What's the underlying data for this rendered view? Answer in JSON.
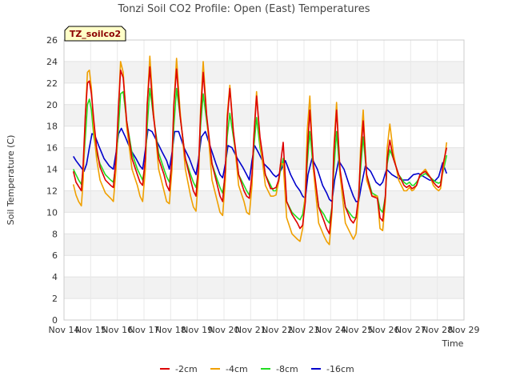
{
  "chart_data": {
    "type": "line",
    "title": "Tonzi Soil CO2 Profile: Open (East) Temperatures",
    "badge": "TZ_soilco2",
    "xlabel": "Time",
    "ylabel": "Soil Temperature (C)",
    "ylim": [
      0,
      26
    ],
    "yticks": [
      0,
      2,
      4,
      6,
      8,
      10,
      12,
      14,
      16,
      18,
      20,
      22,
      24,
      26
    ],
    "xlim": [
      14,
      29
    ],
    "xtick_values": [
      14,
      15,
      16,
      17,
      18,
      19,
      20,
      21,
      22,
      23,
      24,
      25,
      26,
      27,
      28,
      29
    ],
    "xtick_labels": [
      "Nov 14",
      "Nov 15",
      "Nov 16",
      "Nov 17",
      "Nov 18",
      "Nov 19",
      "Nov 20",
      "Nov 21",
      "Nov 22",
      "Nov 23",
      "Nov 24",
      "Nov 25",
      "Nov 26",
      "Nov 27",
      "Nov 28",
      "Nov 29"
    ],
    "grid": true,
    "legend_position": "bottom",
    "series": [
      {
        "name": "-2cm",
        "color": "#dd0000",
        "x": [
          14.35,
          14.45,
          14.55,
          14.65,
          14.72,
          14.8,
          14.88,
          14.95,
          15.03,
          15.12,
          15.22,
          15.35,
          15.55,
          15.75,
          15.85,
          15.95,
          16.05,
          16.12,
          16.22,
          16.35,
          16.55,
          16.75,
          16.85,
          16.95,
          17.05,
          17.12,
          17.22,
          17.35,
          17.55,
          17.75,
          17.85,
          17.95,
          18.05,
          18.12,
          18.22,
          18.35,
          18.55,
          18.75,
          18.85,
          18.95,
          19.05,
          19.12,
          19.22,
          19.35,
          19.55,
          19.75,
          19.85,
          19.95,
          20.05,
          20.12,
          20.22,
          20.35,
          20.55,
          20.75,
          20.85,
          20.95,
          21.05,
          21.12,
          21.22,
          21.35,
          21.55,
          21.75,
          21.85,
          21.95,
          22.05,
          22.12,
          22.22,
          22.35,
          22.55,
          22.75,
          22.85,
          22.95,
          23.05,
          23.12,
          23.22,
          23.35,
          23.55,
          23.75,
          23.85,
          23.95,
          24.05,
          24.12,
          24.22,
          24.35,
          24.55,
          24.75,
          24.85,
          24.95,
          25.05,
          25.12,
          25.22,
          25.35,
          25.55,
          25.75,
          25.85,
          25.95,
          26.05,
          26.12,
          26.22,
          26.35,
          26.55,
          26.75,
          26.85,
          26.95,
          27.05,
          27.12,
          27.22,
          27.35,
          27.55,
          27.75,
          27.85,
          27.95,
          28.05,
          28.12,
          28.22,
          28.35
        ],
        "y": [
          13.8,
          12.8,
          12.4,
          12.0,
          14.5,
          19.0,
          22.0,
          22.2,
          21.0,
          18.5,
          16.0,
          14.2,
          13.0,
          12.5,
          12.3,
          15.0,
          20.0,
          23.2,
          22.5,
          18.5,
          15.0,
          13.5,
          12.8,
          12.5,
          15.0,
          20.0,
          23.5,
          19.0,
          15.0,
          13.5,
          12.5,
          12.0,
          15.0,
          20.0,
          23.3,
          19.0,
          15.0,
          13.0,
          12.0,
          11.5,
          14.5,
          19.0,
          23.0,
          19.0,
          14.5,
          12.5,
          11.5,
          11.0,
          14.0,
          18.5,
          21.5,
          17.5,
          13.5,
          12.0,
          11.5,
          11.3,
          13.5,
          17.0,
          20.8,
          17.0,
          13.5,
          12.2,
          12.2,
          12.3,
          13.0,
          14.5,
          16.5,
          11.0,
          9.8,
          9.0,
          8.5,
          8.8,
          11.0,
          15.5,
          19.5,
          14.5,
          10.5,
          9.2,
          8.5,
          8.0,
          10.5,
          15.5,
          19.5,
          14.0,
          10.5,
          9.3,
          9.0,
          9.5,
          11.5,
          15.0,
          18.5,
          13.5,
          11.5,
          11.3,
          9.5,
          9.2,
          11.5,
          15.0,
          16.7,
          15.0,
          13.5,
          12.5,
          12.3,
          12.5,
          12.2,
          12.3,
          12.5,
          13.5,
          13.8,
          13.2,
          12.8,
          12.5,
          12.3,
          12.5,
          14.5,
          16.0
        ]
      },
      {
        "name": "-4cm",
        "color": "#f0a000",
        "x": [
          14.35,
          14.45,
          14.55,
          14.65,
          14.72,
          14.8,
          14.88,
          14.95,
          15.03,
          15.12,
          15.22,
          15.35,
          15.55,
          15.75,
          15.85,
          15.95,
          16.05,
          16.12,
          16.22,
          16.35,
          16.55,
          16.75,
          16.85,
          16.95,
          17.05,
          17.12,
          17.22,
          17.35,
          17.55,
          17.75,
          17.85,
          17.95,
          18.05,
          18.12,
          18.22,
          18.35,
          18.55,
          18.75,
          18.85,
          18.95,
          19.05,
          19.12,
          19.22,
          19.35,
          19.55,
          19.75,
          19.85,
          19.95,
          20.05,
          20.12,
          20.22,
          20.35,
          20.55,
          20.75,
          20.85,
          20.95,
          21.05,
          21.12,
          21.22,
          21.35,
          21.55,
          21.75,
          21.85,
          21.95,
          22.05,
          22.12,
          22.22,
          22.35,
          22.55,
          22.75,
          22.85,
          22.95,
          23.05,
          23.12,
          23.22,
          23.35,
          23.55,
          23.75,
          23.85,
          23.95,
          24.05,
          24.12,
          24.22,
          24.35,
          24.55,
          24.75,
          24.85,
          24.95,
          25.05,
          25.12,
          25.22,
          25.35,
          25.55,
          25.75,
          25.85,
          25.95,
          26.05,
          26.12,
          26.22,
          26.35,
          26.55,
          26.75,
          26.85,
          26.95,
          27.05,
          27.12,
          27.22,
          27.35,
          27.55,
          27.75,
          27.85,
          27.95,
          28.05,
          28.12,
          28.22,
          28.35
        ],
        "y": [
          12.6,
          11.6,
          11.0,
          10.6,
          13.0,
          19.0,
          23.0,
          23.2,
          21.5,
          17.5,
          15.0,
          13.0,
          11.8,
          11.3,
          11.0,
          14.0,
          20.0,
          24.0,
          23.0,
          18.0,
          14.0,
          12.5,
          11.5,
          11.0,
          14.0,
          20.0,
          24.5,
          19.5,
          14.0,
          12.0,
          11.0,
          10.8,
          14.0,
          20.0,
          24.3,
          19.5,
          14.0,
          11.5,
          10.5,
          10.1,
          13.5,
          19.5,
          24.0,
          19.0,
          13.0,
          11.0,
          10.0,
          9.7,
          13.0,
          19.0,
          21.8,
          17.5,
          12.5,
          11.0,
          10.0,
          9.8,
          12.5,
          17.0,
          21.2,
          16.5,
          12.5,
          11.5,
          11.5,
          11.6,
          12.8,
          14.5,
          14.5,
          9.5,
          8.0,
          7.5,
          7.3,
          8.5,
          12.0,
          17.5,
          20.8,
          14.0,
          9.0,
          7.8,
          7.3,
          7.0,
          10.0,
          16.0,
          20.2,
          13.5,
          9.0,
          8.0,
          7.5,
          8.0,
          11.0,
          16.0,
          19.5,
          13.0,
          11.5,
          11.5,
          8.5,
          8.3,
          11.0,
          16.0,
          18.2,
          15.5,
          13.0,
          12.0,
          12.0,
          12.3,
          12.0,
          12.1,
          12.5,
          13.5,
          14.0,
          13.2,
          12.5,
          12.2,
          12.0,
          12.2,
          14.0,
          16.5
        ]
      },
      {
        "name": "-8cm",
        "color": "#22dd22",
        "x": [
          14.35,
          14.45,
          14.55,
          14.65,
          14.72,
          14.8,
          14.88,
          14.95,
          15.03,
          15.12,
          15.22,
          15.35,
          15.55,
          15.75,
          15.85,
          15.95,
          16.05,
          16.12,
          16.22,
          16.35,
          16.55,
          16.75,
          16.85,
          16.95,
          17.05,
          17.12,
          17.22,
          17.35,
          17.55,
          17.75,
          17.85,
          17.95,
          18.05,
          18.12,
          18.22,
          18.35,
          18.55,
          18.75,
          18.85,
          18.95,
          19.05,
          19.12,
          19.22,
          19.35,
          19.55,
          19.75,
          19.85,
          19.95,
          20.05,
          20.12,
          20.22,
          20.35,
          20.55,
          20.75,
          20.85,
          20.95,
          21.05,
          21.12,
          21.22,
          21.35,
          21.55,
          21.75,
          21.85,
          21.95,
          22.05,
          22.12,
          22.22,
          22.35,
          22.55,
          22.75,
          22.85,
          22.95,
          23.05,
          23.12,
          23.22,
          23.35,
          23.55,
          23.75,
          23.85,
          23.95,
          24.05,
          24.12,
          24.22,
          24.35,
          24.55,
          24.75,
          24.85,
          24.95,
          25.05,
          25.12,
          25.22,
          25.35,
          25.55,
          25.75,
          25.85,
          25.95,
          26.05,
          26.12,
          26.22,
          26.35,
          26.55,
          26.75,
          26.85,
          26.95,
          27.05,
          27.12,
          27.22,
          27.35,
          27.55,
          27.75,
          27.85,
          27.95,
          28.05,
          28.12,
          28.22,
          28.35
        ],
        "y": [
          14.0,
          13.5,
          13.0,
          12.6,
          14.0,
          17.0,
          20.0,
          20.5,
          19.5,
          17.0,
          15.5,
          14.5,
          13.5,
          13.0,
          12.8,
          14.5,
          18.0,
          21.0,
          21.2,
          18.5,
          15.5,
          14.0,
          13.5,
          13.0,
          14.5,
          18.0,
          21.5,
          19.0,
          15.5,
          14.0,
          13.3,
          12.8,
          14.5,
          18.0,
          21.5,
          19.0,
          15.0,
          13.5,
          12.8,
          12.3,
          14.0,
          18.0,
          21.0,
          18.5,
          14.5,
          13.0,
          12.3,
          11.8,
          13.5,
          17.0,
          19.2,
          17.0,
          13.5,
          12.5,
          12.0,
          11.6,
          13.0,
          16.0,
          18.8,
          16.0,
          13.5,
          12.5,
          12.0,
          12.0,
          12.8,
          14.0,
          15.0,
          11.0,
          10.0,
          9.5,
          9.3,
          9.8,
          11.5,
          14.5,
          17.5,
          14.0,
          10.5,
          9.8,
          9.3,
          9.0,
          10.5,
          14.0,
          17.5,
          13.5,
          10.5,
          9.8,
          9.5,
          9.5,
          11.0,
          14.0,
          17.0,
          13.5,
          11.8,
          11.5,
          10.3,
          10.0,
          11.5,
          14.5,
          15.8,
          15.0,
          13.5,
          12.8,
          12.6,
          12.8,
          12.5,
          12.5,
          12.8,
          13.3,
          13.6,
          13.2,
          13.0,
          12.8,
          12.7,
          12.8,
          13.8,
          15.3
        ]
      },
      {
        "name": "-16cm",
        "color": "#0000cc",
        "x": [
          14.35,
          14.45,
          14.6,
          14.75,
          14.85,
          14.95,
          15.05,
          15.15,
          15.3,
          15.5,
          15.7,
          15.85,
          15.95,
          16.05,
          16.15,
          16.3,
          16.5,
          16.7,
          16.85,
          16.95,
          17.05,
          17.15,
          17.3,
          17.5,
          17.7,
          17.85,
          17.95,
          18.05,
          18.15,
          18.3,
          18.5,
          18.7,
          18.85,
          18.95,
          19.05,
          19.15,
          19.3,
          19.5,
          19.7,
          19.85,
          19.95,
          20.05,
          20.15,
          20.3,
          20.5,
          20.7,
          20.85,
          20.95,
          21.05,
          21.15,
          21.3,
          21.5,
          21.7,
          21.85,
          21.95,
          22.05,
          22.15,
          22.3,
          22.5,
          22.7,
          22.85,
          22.95,
          23.05,
          23.15,
          23.3,
          23.5,
          23.7,
          23.85,
          23.95,
          24.05,
          24.15,
          24.3,
          24.5,
          24.7,
          24.85,
          24.95,
          25.05,
          25.15,
          25.3,
          25.5,
          25.7,
          25.85,
          25.95,
          26.1,
          26.3,
          26.5,
          26.7,
          26.9,
          27.1,
          27.3,
          27.5,
          27.7,
          27.9,
          28.05,
          28.2,
          28.35
        ],
        "y": [
          15.2,
          14.8,
          14.3,
          13.8,
          14.5,
          16.0,
          17.3,
          17.2,
          16.2,
          15.0,
          14.3,
          14.0,
          15.5,
          17.3,
          17.8,
          17.0,
          15.8,
          15.0,
          14.3,
          14.0,
          15.8,
          17.7,
          17.5,
          16.5,
          15.5,
          14.8,
          14.0,
          15.5,
          17.5,
          17.5,
          16.0,
          15.0,
          14.0,
          13.5,
          15.0,
          17.0,
          17.5,
          16.0,
          14.5,
          13.5,
          13.2,
          14.5,
          16.2,
          16.0,
          15.0,
          14.2,
          13.5,
          13.0,
          14.8,
          16.2,
          15.5,
          14.5,
          14.0,
          13.5,
          13.3,
          13.5,
          14.0,
          14.8,
          13.5,
          12.5,
          12.0,
          11.5,
          11.3,
          13.5,
          15.0,
          14.0,
          12.5,
          11.8,
          11.2,
          11.0,
          13.0,
          14.8,
          14.0,
          12.5,
          11.5,
          11.0,
          11.0,
          12.5,
          14.3,
          13.8,
          12.8,
          12.5,
          12.8,
          14.0,
          13.5,
          13.2,
          13.0,
          13.0,
          13.5,
          13.6,
          13.3,
          13.0,
          12.9,
          13.3,
          14.6,
          13.6
        ]
      }
    ]
  }
}
